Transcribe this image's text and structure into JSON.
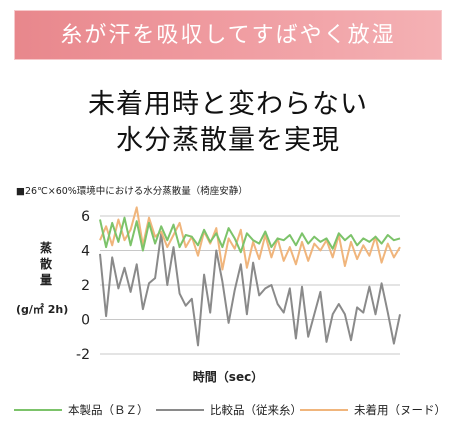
{
  "banner": {
    "text": "糸が汗を吸収してすばやく放湿"
  },
  "headline": {
    "line1": "未着用時と変わらない",
    "line2": "水分蒸散量を実現"
  },
  "colors": {
    "banner": "#ec8f95",
    "bz": "#7cc36a",
    "comparison": "#8a8a8a",
    "unworn": "#f0b57c"
  },
  "chart_data": {
    "type": "line",
    "title": "■26℃×60%環境中における水分蒸散量（椅座安静）",
    "ylabel": "蒸散量",
    "yunit": "(g/㎡ 2h)",
    "xlabel": "時間（sec）",
    "ylim": [
      -2,
      6
    ],
    "yticks": [
      -2,
      0,
      2,
      4,
      6
    ],
    "grid": true,
    "legend_position": "bottom",
    "series": [
      {
        "name": "本製品（ＢＺ）",
        "color": "#7cc36a",
        "values": [
          5.8,
          4.2,
          5.6,
          4.5,
          5.9,
          4.3,
          5.7,
          4.0,
          5.6,
          4.4,
          5.4,
          4.6,
          5.5,
          4.2,
          4.9,
          4.8,
          4.3,
          5.2,
          4.5,
          5.0,
          4.2,
          5.3,
          4.7,
          3.9,
          5.0,
          4.6,
          4.4,
          5.1,
          4.2,
          4.7,
          4.6,
          4.9,
          4.3,
          5.0,
          4.4,
          4.8,
          4.5,
          4.7,
          4.1,
          5.0,
          4.6,
          4.9,
          4.3,
          4.7,
          4.5,
          4.8,
          4.4,
          4.9,
          4.6,
          4.7
        ]
      },
      {
        "name": "比較品（従来糸）",
        "color": "#8a8a8a",
        "values": [
          3.8,
          0.2,
          3.6,
          1.8,
          3.0,
          1.6,
          3.2,
          0.6,
          2.1,
          2.4,
          5.0,
          2.0,
          4.2,
          1.5,
          0.8,
          1.2,
          -1.5,
          2.6,
          0.4,
          4.0,
          2.2,
          -0.2,
          1.7,
          3.2,
          0.3,
          3.3,
          1.4,
          1.8,
          2.0,
          0.9,
          0.4,
          1.8,
          -1.1,
          1.9,
          -1.0,
          0.3,
          1.6,
          -1.3,
          0.3,
          0.9,
          0.3,
          -1.2,
          0.7,
          0.4,
          1.9,
          0.3,
          2.1,
          0.4,
          -1.4,
          0.3
        ]
      },
      {
        "name": "未着用（ヌード）",
        "color": "#f0b57c",
        "values": [
          4.6,
          5.4,
          4.3,
          5.8,
          4.6,
          5.2,
          6.5,
          4.3,
          5.9,
          4.8,
          5.1,
          4.2,
          4.9,
          5.6,
          4.2,
          4.8,
          3.7,
          5.1,
          4.4,
          5.3,
          2.9,
          4.7,
          4.1,
          5.2,
          3.0,
          4.5,
          3.5,
          4.9,
          3.6,
          4.7,
          3.4,
          4.2,
          3.2,
          4.5,
          3.4,
          4.4,
          4.0,
          4.6,
          3.6,
          4.9,
          3.1,
          4.5,
          3.5,
          4.3,
          3.7,
          4.8,
          3.3,
          4.4,
          3.6,
          4.2
        ]
      }
    ]
  }
}
